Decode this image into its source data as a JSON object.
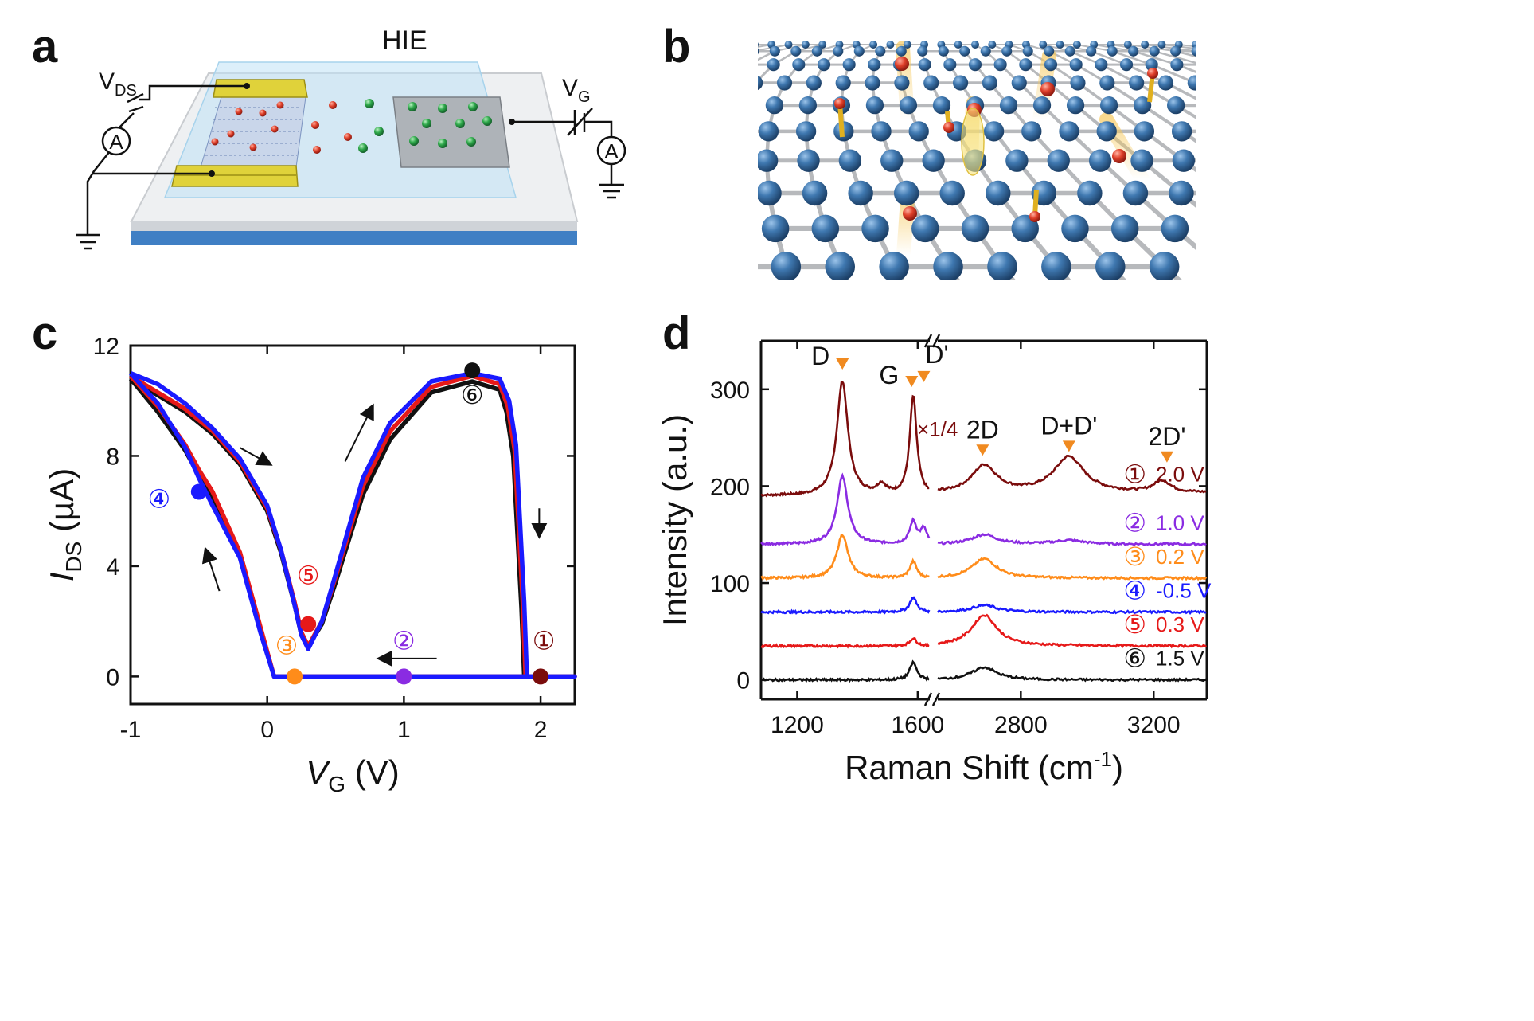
{
  "panels": {
    "a": {
      "label": "a",
      "title": "HIE",
      "vds": {
        "main": "V",
        "sub": "DS"
      },
      "vg": {
        "main": "V",
        "sub": "G"
      },
      "ammeter": "A"
    },
    "b": {
      "label": "b"
    },
    "c": {
      "label": "c"
    },
    "d": {
      "label": "d"
    }
  },
  "colors": {
    "s1": "#7a0c0c",
    "s2": "#8a2be2",
    "s3": "#ff8c1a",
    "s4": "#1a1aff",
    "s5": "#e61919",
    "s6": "#111111",
    "gold": "#d8c81c",
    "substrate": "#3f7fc4",
    "carbon": "#2f6aa3"
  },
  "chart_data": [
    {
      "panel": "c",
      "type": "line",
      "xlabel": {
        "main": "V",
        "sub": "G",
        "unit": " (V)"
      },
      "ylabel": {
        "main": "I",
        "sub": "DS",
        "unit": " (µA)"
      },
      "xlim": [
        -1,
        2.25
      ],
      "ylim": [
        -1,
        12
      ],
      "xticks": [
        -1,
        0,
        1,
        2
      ],
      "yticks": [
        0,
        4,
        8,
        12
      ],
      "tick_labels_x": [
        "-1",
        "0",
        "1",
        "2"
      ],
      "tick_labels_y": [
        "0",
        "4",
        "8",
        "12"
      ],
      "series": [
        {
          "color": "#111111",
          "x": [
            -1,
            -0.8,
            -0.6,
            -0.5,
            -0.4,
            -0.2,
            -0.05,
            0.05,
            0.1,
            0.3,
            0.5,
            1,
            1.88,
            2.25,
            2.25,
            1.88,
            1.86,
            1.8,
            1.75,
            1.7,
            1.5,
            1.2,
            0.9,
            0.7,
            0.5,
            0.4,
            0.3,
            0.25,
            0.2,
            0.1,
            0,
            -0.2,
            -0.4,
            -0.6,
            -0.8,
            -1
          ],
          "y": [
            10.8,
            9.6,
            8.2,
            7.3,
            6.5,
            4.4,
            1.7,
            0,
            0,
            0,
            0,
            0,
            0,
            0,
            0,
            0,
            2.5,
            8.0,
            9.6,
            10.4,
            10.7,
            10.3,
            8.6,
            6.6,
            3.4,
            1.9,
            1.1,
            1.5,
            2.6,
            4.5,
            6.0,
            7.7,
            8.8,
            9.6,
            10.2,
            10.8
          ]
        },
        {
          "color": "#e61919",
          "x": [
            -1,
            -0.8,
            -0.6,
            -0.5,
            -0.4,
            -0.2,
            -0.05,
            0.05,
            0.1,
            0.3,
            0.5,
            1,
            1.89,
            2.25,
            2.25,
            1.89,
            1.87,
            1.81,
            1.76,
            1.7,
            1.5,
            1.2,
            0.9,
            0.7,
            0.5,
            0.4,
            0.3,
            0.25,
            0.2,
            0.1,
            0,
            -0.2,
            -0.4,
            -0.6,
            -0.8,
            -1
          ],
          "y": [
            10.9,
            9.8,
            8.4,
            7.5,
            6.7,
            4.5,
            1.8,
            0,
            0,
            0,
            0,
            0,
            0,
            0,
            0,
            0,
            2.6,
            8.2,
            9.8,
            10.6,
            10.9,
            10.5,
            8.9,
            6.9,
            3.6,
            2.0,
            1.1,
            1.6,
            2.7,
            4.6,
            6.1,
            7.8,
            8.9,
            9.7,
            10.3,
            10.9
          ]
        },
        {
          "color": "#1a1aff",
          "x": [
            -1,
            -0.8,
            -0.6,
            -0.5,
            -0.4,
            -0.2,
            -0.05,
            0.05,
            0.1,
            0.3,
            0.5,
            1,
            1.9,
            2.25,
            2.25,
            1.9,
            1.88,
            1.82,
            1.77,
            1.7,
            1.5,
            1.2,
            0.9,
            0.7,
            0.5,
            0.4,
            0.3,
            0.25,
            0.2,
            0.1,
            0,
            -0.2,
            -0.4,
            -0.6,
            -0.8,
            -1
          ],
          "y": [
            11.0,
            9.9,
            8.3,
            7.2,
            6.2,
            4.3,
            1.6,
            0,
            0,
            0,
            0,
            0,
            0,
            0,
            0,
            0,
            2.7,
            8.4,
            10.0,
            10.8,
            11.0,
            10.7,
            9.2,
            7.2,
            3.7,
            2.0,
            1.0,
            1.5,
            2.6,
            4.6,
            6.2,
            7.9,
            9.0,
            9.9,
            10.6,
            11.0
          ]
        }
      ],
      "markers": [
        {
          "id": "1",
          "label": "①",
          "x": 2.0,
          "y": 0,
          "color": "#7a0c0c"
        },
        {
          "id": "2",
          "label": "②",
          "x": 1.0,
          "y": 0,
          "color": "#8a2be2"
        },
        {
          "id": "3",
          "label": "③",
          "x": 0.2,
          "y": 0,
          "color": "#ff8c1a"
        },
        {
          "id": "4",
          "label": "④",
          "x": -0.5,
          "y": 6.7,
          "color": "#1a1aff"
        },
        {
          "id": "5",
          "label": "⑤",
          "x": 0.3,
          "y": 1.9,
          "color": "#e61919"
        },
        {
          "id": "6",
          "label": "⑥",
          "x": 1.5,
          "y": 11.1,
          "color": "#111111"
        }
      ],
      "arrows": [
        {
          "from": [
            -0.2,
            8.3
          ],
          "to": [
            0.02,
            7.7
          ]
        },
        {
          "from": [
            0.57,
            7.8
          ],
          "to": [
            0.77,
            9.8
          ]
        },
        {
          "from": [
            1.99,
            6.1
          ],
          "to": [
            1.99,
            5.1
          ]
        },
        {
          "from": [
            1.24,
            0.65
          ],
          "to": [
            0.82,
            0.65
          ]
        },
        {
          "from": [
            -0.35,
            3.1
          ],
          "to": [
            -0.45,
            4.6
          ]
        }
      ]
    },
    {
      "panel": "d",
      "type": "line",
      "xlabel": {
        "main": "Raman Shift (cm",
        "sup": "-1",
        "close": ")"
      },
      "ylabel": "Intensity (a.u.)",
      "ylim": [
        -20,
        350
      ],
      "yticks": [
        0,
        100,
        200,
        300
      ],
      "tick_labels_y": [
        "0",
        "100",
        "200",
        "300"
      ],
      "x_segments": [
        {
          "xlim": [
            1080,
            1640
          ],
          "xticks": [
            1200,
            1600
          ],
          "tick_labels": [
            "1200",
            "1600"
          ]
        },
        {
          "xlim": [
            2550,
            3360
          ],
          "xticks": [
            2800,
            3200
          ],
          "tick_labels": [
            "2800",
            "3200"
          ]
        }
      ],
      "break_note": "//",
      "peaks": [
        {
          "label": "D",
          "x": 1350,
          "y": 322
        },
        {
          "label": "G",
          "x": 1580,
          "y": 304
        },
        {
          "label": "D'",
          "x": 1620,
          "y": 309
        },
        {
          "label": "2D",
          "x": 2685,
          "y": 233
        },
        {
          "label": "D+D'",
          "x": 2945,
          "y": 237
        },
        {
          "label": "2D'",
          "x": 3240,
          "y": 226
        }
      ],
      "scale_note": "×1/4",
      "series": [
        {
          "id": "1",
          "symbol": "①",
          "name": "2.0 V",
          "color": "#7a0c0c",
          "offset": 190
        },
        {
          "id": "2",
          "symbol": "②",
          "name": "1.0 V",
          "color": "#8a2be2",
          "offset": 140
        },
        {
          "id": "3",
          "symbol": "③",
          "name": "0.2 V",
          "color": "#ff8c1a",
          "offset": 105
        },
        {
          "id": "4",
          "symbol": "④",
          "name": "-0.5 V",
          "color": "#1a1aff",
          "offset": 70
        },
        {
          "id": "5",
          "symbol": "⑤",
          "name": "0.3 V",
          "color": "#e61919",
          "offset": 35
        },
        {
          "id": "6",
          "symbol": "⑥",
          "name": "1.5 V",
          "color": "#111111",
          "offset": 0
        }
      ],
      "peak_heights": {
        "1": {
          "D": 118,
          "G": 102,
          "Dp": 0,
          "2D": 28,
          "DDp": 37,
          "2Dp": 12
        },
        "2": {
          "D": 70,
          "G": 23,
          "Dp": 15,
          "2D": 10,
          "DDp": 4,
          "2Dp": 0
        },
        "3": {
          "D": 45,
          "G": 17,
          "Dp": 0,
          "2D": 20,
          "DDp": 0,
          "2Dp": 0
        },
        "4": {
          "D": 0,
          "G": 15,
          "Dp": 0,
          "2D": 7,
          "DDp": 0,
          "2Dp": 0
        },
        "5": {
          "D": 0,
          "G": 8,
          "Dp": 0,
          "2D": 32,
          "DDp": 0,
          "2Dp": 0
        },
        "6": {
          "D": 0,
          "G": 18,
          "Dp": 0,
          "2D": 13,
          "DDp": 0,
          "2Dp": 0
        }
      }
    }
  ]
}
